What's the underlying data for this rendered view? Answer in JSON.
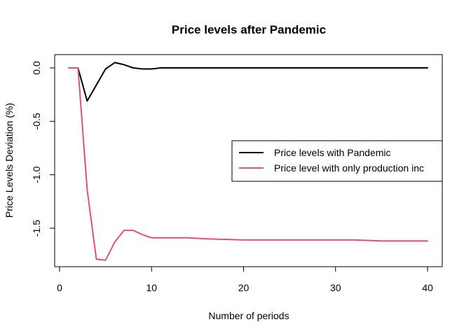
{
  "chart_data": {
    "type": "line",
    "title": "Price levels after Pandemic",
    "xlabel": "Number of periods",
    "ylabel": "Price Levels Deviation (%)",
    "xlim": [
      0,
      40
    ],
    "ylim": [
      -1.8,
      0.1
    ],
    "x_ticks": [
      0,
      10,
      20,
      30,
      40
    ],
    "x_tick_labels": [
      "0",
      "10",
      "20",
      "30",
      "40"
    ],
    "y_ticks": [
      0.0,
      -0.5,
      -1.0,
      -1.5
    ],
    "y_tick_labels": [
      "0.0",
      "-0.5",
      "-1.0",
      "-1.5"
    ],
    "grid": false,
    "legend_position": "right",
    "series": [
      {
        "name": "Price levels with Pandemic",
        "color": "#000000",
        "x": [
          1,
          2,
          3,
          4,
          5,
          6,
          7,
          8,
          9,
          10,
          11,
          12,
          15,
          20,
          25,
          30,
          35,
          40
        ],
        "y": [
          0.0,
          0.0,
          -0.31,
          -0.16,
          -0.01,
          0.05,
          0.03,
          0.0,
          -0.01,
          -0.01,
          0.0,
          0.0,
          0.0,
          0.0,
          0.0,
          0.0,
          0.0,
          0.0
        ]
      },
      {
        "name": "Price level with only production inc",
        "color": "#DF536B",
        "x": [
          1,
          2,
          3,
          4,
          5,
          6,
          7,
          8,
          9,
          10,
          11,
          14,
          16,
          20,
          24,
          28,
          32,
          35,
          40
        ],
        "y": [
          0.0,
          0.0,
          -1.14,
          -1.79,
          -1.8,
          -1.63,
          -1.52,
          -1.52,
          -1.56,
          -1.59,
          -1.59,
          -1.59,
          -1.6,
          -1.61,
          -1.61,
          -1.61,
          -1.61,
          -1.62,
          -1.62
        ]
      }
    ]
  }
}
